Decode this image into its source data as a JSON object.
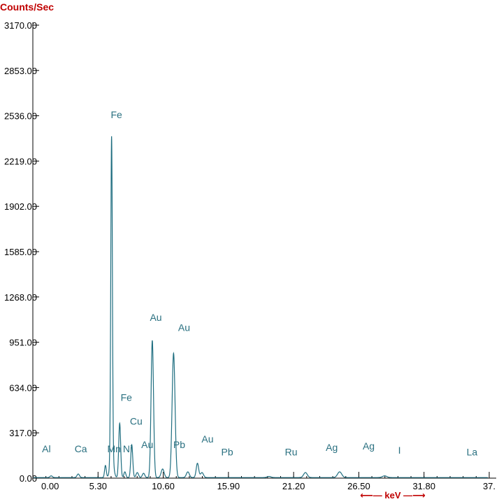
{
  "chart_data": {
    "type": "line",
    "title": "",
    "ylabel": "Counts/Sec",
    "xlabel": "keV",
    "xlabel_decorated": "⟵— keV —⟶",
    "xlim": [
      0,
      37.1
    ],
    "ylim": [
      0,
      3170
    ],
    "yticks": [
      "3170.00",
      "2853.00",
      "2536.00",
      "2219.00",
      "1902.00",
      "1585.00",
      "1268.00",
      "951.00",
      "634.00",
      "317.00",
      "0.00"
    ],
    "ytick_values": [
      3170,
      2853,
      2536,
      2219,
      1902,
      1585,
      1268,
      951,
      634,
      317,
      0
    ],
    "xticks": [
      "0.00",
      "5.30",
      "10.60",
      "15.90",
      "21.20",
      "26.50",
      "31.80",
      "37."
    ],
    "xtick_values": [
      0,
      5.3,
      10.6,
      15.9,
      21.2,
      26.5,
      31.8,
      37.1
    ],
    "grid": false,
    "colors": {
      "axis": "#000000",
      "label": "#c00000",
      "spectrum": "#1f6e80",
      "element_label": "#2a7080"
    },
    "series": [
      {
        "values_note": "",
        "peaks": [
          {
            "x": 1.49,
            "y": 12,
            "w": 0.1
          },
          {
            "x": 3.69,
            "y": 25,
            "w": 0.1
          },
          {
            "x": 5.9,
            "y": 85,
            "w": 0.07
          },
          {
            "x": 6.4,
            "y": 2240,
            "w": 0.065
          },
          {
            "x": 6.42,
            "y": 150,
            "w": 0.14
          },
          {
            "x": 7.06,
            "y": 380,
            "w": 0.08
          },
          {
            "x": 7.48,
            "y": 40,
            "w": 0.08
          },
          {
            "x": 8.04,
            "y": 230,
            "w": 0.08
          },
          {
            "x": 8.49,
            "y": 35,
            "w": 0.1
          },
          {
            "x": 9.0,
            "y": 30,
            "w": 0.1
          },
          {
            "x": 9.71,
            "y": 960,
            "w": 0.1
          },
          {
            "x": 10.55,
            "y": 60,
            "w": 0.12
          },
          {
            "x": 11.44,
            "y": 870,
            "w": 0.12
          },
          {
            "x": 12.6,
            "y": 40,
            "w": 0.12
          },
          {
            "x": 13.38,
            "y": 100,
            "w": 0.1
          },
          {
            "x": 13.75,
            "y": 35,
            "w": 0.12
          },
          {
            "x": 19.2,
            "y": 8,
            "w": 0.15
          },
          {
            "x": 22.16,
            "y": 35,
            "w": 0.15
          },
          {
            "x": 24.94,
            "y": 40,
            "w": 0.17
          },
          {
            "x": 28.6,
            "y": 12,
            "w": 0.18
          }
        ]
      }
    ],
    "annotations": [
      {
        "text": "Fe",
        "x": 6.8,
        "y": 2520
      },
      {
        "text": "Al",
        "x": 1.1,
        "y": 180
      },
      {
        "text": "Ca",
        "x": 3.9,
        "y": 180
      },
      {
        "text": "Mn",
        "x": 6.6,
        "y": 180
      },
      {
        "text": "Ni",
        "x": 7.7,
        "y": 180
      },
      {
        "text": "Fe",
        "x": 7.6,
        "y": 540
      },
      {
        "text": "Cu",
        "x": 8.4,
        "y": 375
      },
      {
        "text": "Au",
        "x": 9.3,
        "y": 210
      },
      {
        "text": "Au",
        "x": 10.0,
        "y": 1100
      },
      {
        "text": "Au",
        "x": 12.3,
        "y": 1030
      },
      {
        "text": "Pb",
        "x": 11.9,
        "y": 210
      },
      {
        "text": "Au",
        "x": 14.2,
        "y": 250
      },
      {
        "text": "Pb",
        "x": 15.8,
        "y": 160
      },
      {
        "text": "Ru",
        "x": 21.0,
        "y": 160
      },
      {
        "text": "Ag",
        "x": 24.3,
        "y": 190
      },
      {
        "text": "Ag",
        "x": 27.3,
        "y": 200
      },
      {
        "text": "I",
        "x": 29.8,
        "y": 170
      },
      {
        "text": "La",
        "x": 35.7,
        "y": 160
      }
    ]
  }
}
